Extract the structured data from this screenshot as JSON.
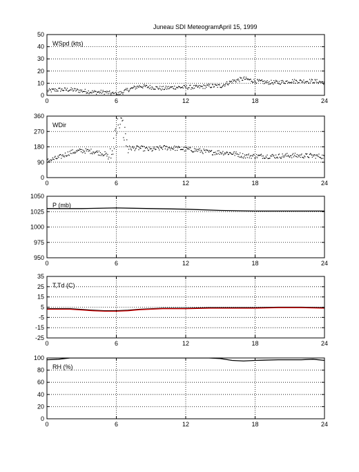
{
  "chart_data": {
    "title": "Juneau SDI Meteogram:",
    "date": "April 15, 1999",
    "type": "multi-panel",
    "panels": [
      {
        "type": "scatter",
        "title": "WSpd (kts)",
        "x_ticks": [
          0,
          6,
          12,
          18,
          24
        ],
        "y_ticks": [
          0,
          10,
          20,
          30,
          40,
          50
        ],
        "xlim": [
          0,
          24
        ],
        "ylim": [
          0,
          50
        ],
        "grid": true,
        "series": [
          {
            "color": "#000000",
            "x": [
              0,
              1,
              2,
              3,
              4,
              5,
              6,
              7,
              8,
              9,
              10,
              11,
              12,
              13,
              14,
              15,
              16,
              17,
              18,
              19,
              20,
              21,
              22,
              23,
              24
            ],
            "y": [
              4,
              5,
              5,
              4,
              3,
              3,
              1,
              5,
              8,
              7,
              6,
              7,
              7,
              7,
              8,
              8,
              12,
              14,
              12,
              11,
              11,
              12,
              12,
              12,
              11
            ]
          }
        ]
      },
      {
        "type": "scatter",
        "title": "WDir",
        "x_ticks": [
          0,
          6,
          12,
          18,
          24
        ],
        "y_ticks": [
          0,
          90,
          180,
          270,
          360
        ],
        "xlim": [
          0,
          24
        ],
        "ylim": [
          0,
          360
        ],
        "grid": true,
        "series": [
          {
            "color": "#000000",
            "x": [
              0,
              1,
              2,
              3,
              4,
              5,
              5.5,
              6,
              6.3,
              6.6,
              7,
              8,
              9,
              10,
              11,
              12,
              13,
              14,
              15,
              16,
              17,
              18,
              19,
              20,
              21,
              22,
              23,
              24
            ],
            "y": [
              100,
              120,
              150,
              160,
              155,
              140,
              110,
              300,
              330,
              280,
              175,
              175,
              165,
              178,
              175,
              168,
              162,
              150,
              150,
              145,
              130,
              128,
              128,
              128,
              132,
              130,
              130,
              125
            ]
          }
        ]
      },
      {
        "type": "line",
        "title": "P (mb)",
        "x_ticks": [
          0,
          6,
          12,
          18,
          24
        ],
        "y_ticks": [
          950,
          975,
          1000,
          1025,
          1050
        ],
        "xlim": [
          0,
          24
        ],
        "ylim": [
          950,
          1050
        ],
        "grid": true,
        "series": [
          {
            "color": "#000000",
            "x": [
              0,
              3,
              6,
              9,
              12,
              15,
              18,
              21,
              24
            ],
            "y": [
              1030,
              1030,
              1031,
              1030,
              1029,
              1027,
              1026,
              1026,
              1026
            ]
          }
        ]
      },
      {
        "type": "line",
        "title": "T,Td (C)",
        "x_ticks": [
          0,
          6,
          12,
          18,
          24
        ],
        "y_ticks": [
          -25,
          -15,
          -5,
          5,
          15,
          25,
          35
        ],
        "xlim": [
          0,
          24
        ],
        "ylim": [
          -25,
          35
        ],
        "grid": true,
        "series": [
          {
            "color": "#000000",
            "x": [
              0,
              2,
              4,
              5,
              6,
              7,
              8,
              10,
              12,
              14,
              16,
              18,
              20,
              22,
              24
            ],
            "y": [
              3.5,
              3.5,
              2,
              1.5,
              1.5,
              2,
              3,
              4,
              4,
              4.5,
              4.5,
              4.5,
              5,
              5,
              4.5
            ]
          },
          {
            "color": "#cc0000",
            "x": [
              0,
              2,
              4,
              5,
              6,
              7,
              8,
              10,
              12,
              14,
              16,
              18,
              20,
              22,
              24
            ],
            "y": [
              3,
              3,
              1.5,
              1,
              1,
              1.5,
              2.5,
              3.5,
              3.5,
              4,
              4,
              4,
              4.5,
              4.5,
              4
            ]
          }
        ]
      },
      {
        "type": "line",
        "title": "RH (%)",
        "x_ticks": [
          0,
          6,
          12,
          18,
          24
        ],
        "y_ticks": [
          0,
          20,
          40,
          60,
          80,
          100
        ],
        "xlim": [
          0,
          24
        ],
        "ylim": [
          0,
          100
        ],
        "grid": true,
        "series": [
          {
            "color": "#000000",
            "x": [
              0,
              1,
              2,
              3,
              4,
              6,
              8,
              10,
              12,
              14,
              15,
              16,
              17,
              18,
              20,
              22,
              23,
              24
            ],
            "y": [
              97,
              98,
              100,
              100,
              100,
              100,
              100,
              100,
              100,
              100,
              99,
              96,
              95,
              96,
              97,
              97,
              98,
              96
            ]
          }
        ]
      }
    ]
  }
}
